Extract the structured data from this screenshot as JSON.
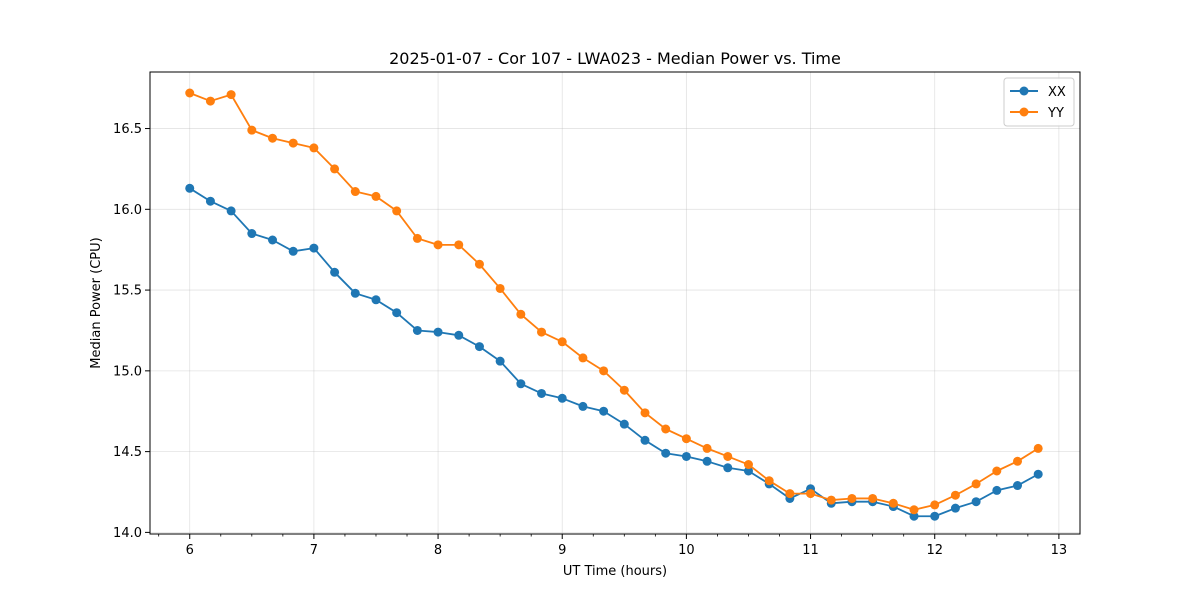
{
  "chart_data": {
    "type": "line",
    "title": "2025-01-07 - Cor 107 - LWA023 - Median Power vs. Time",
    "xlabel": "UT Time (hours)",
    "ylabel": "Median Power (CPU)",
    "xlim": [
      5.68,
      13.17
    ],
    "ylim": [
      13.99,
      16.85
    ],
    "xticks": [
      6,
      7,
      8,
      9,
      10,
      11,
      12,
      13
    ],
    "xtick_labels": [
      "6",
      "7",
      "8",
      "9",
      "10",
      "11",
      "12",
      "13"
    ],
    "yticks": [
      14.0,
      14.5,
      15.0,
      15.5,
      16.0,
      16.5
    ],
    "ytick_labels": [
      "14.0",
      "14.5",
      "15.0",
      "15.5",
      "16.0",
      "16.5"
    ],
    "grid": true,
    "legend_position": "top-right",
    "x": [
      6.0,
      6.1667,
      6.3333,
      6.5,
      6.6667,
      6.8333,
      7.0,
      7.1667,
      7.3333,
      7.5,
      7.6667,
      7.8333,
      8.0,
      8.1667,
      8.3333,
      8.5,
      8.6667,
      8.8333,
      9.0,
      9.1667,
      9.3333,
      9.5,
      9.6667,
      9.8333,
      10.0,
      10.1667,
      10.3333,
      10.5,
      10.6667,
      10.8333,
      11.0,
      11.1667,
      11.3333,
      11.5,
      11.6667,
      11.8333,
      12.0,
      12.1667,
      12.3333,
      12.5,
      12.6667,
      12.8333
    ],
    "series": [
      {
        "name": "XX",
        "color": "#1f77b4",
        "values": [
          16.13,
          16.05,
          15.99,
          15.85,
          15.81,
          15.74,
          15.76,
          15.61,
          15.48,
          15.44,
          15.36,
          15.25,
          15.24,
          15.22,
          15.15,
          15.06,
          14.92,
          14.86,
          14.83,
          14.78,
          14.75,
          14.67,
          14.57,
          14.49,
          14.47,
          14.44,
          14.4,
          14.38,
          14.3,
          14.21,
          14.27,
          14.18,
          14.19,
          14.19,
          14.16,
          14.1,
          14.1,
          14.15,
          14.19,
          14.26,
          14.29,
          14.36
        ]
      },
      {
        "name": "YY",
        "color": "#ff7f0e",
        "values": [
          16.72,
          16.67,
          16.71,
          16.49,
          16.44,
          16.41,
          16.38,
          16.25,
          16.11,
          16.08,
          15.99,
          15.82,
          15.78,
          15.78,
          15.66,
          15.51,
          15.35,
          15.24,
          15.18,
          15.08,
          15.0,
          14.88,
          14.74,
          14.64,
          14.58,
          14.52,
          14.47,
          14.42,
          14.32,
          14.24,
          14.24,
          14.2,
          14.21,
          14.21,
          14.18,
          14.14,
          14.17,
          14.23,
          14.3,
          14.38,
          14.44,
          14.52
        ]
      }
    ]
  }
}
